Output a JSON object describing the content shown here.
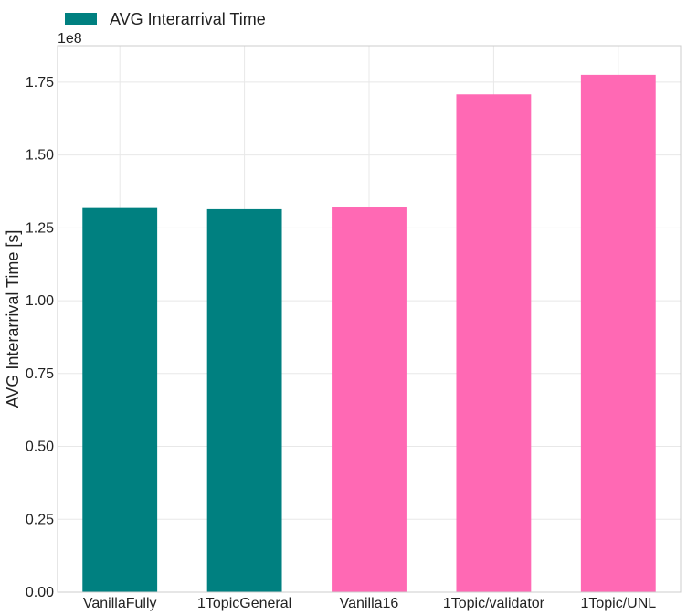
{
  "chart_data": {
    "type": "bar",
    "title": "",
    "xlabel": "",
    "ylabel": "AVG Interarrival Time [s]",
    "y_offset_label": "1e8",
    "ylim": [
      0,
      1.875
    ],
    "yticks": [
      0.0,
      0.25,
      0.5,
      0.75,
      1.0,
      1.25,
      1.5,
      1.75
    ],
    "ytick_labels": [
      "0.00",
      "0.25",
      "0.50",
      "0.75",
      "1.00",
      "1.25",
      "1.50",
      "1.75"
    ],
    "categories": [
      "VanillaFully",
      "1TopicGeneral",
      "Vanilla16",
      "1Topic/validator",
      "1Topic/UNL"
    ],
    "values": [
      1.318,
      1.314,
      1.32,
      1.708,
      1.775
    ],
    "bar_colors": [
      "#008080",
      "#008080",
      "#ff69b4",
      "#ff69b4",
      "#ff69b4"
    ],
    "grid": true,
    "legend": {
      "placement": "top-left",
      "entries": [
        {
          "label": "AVG Interarrival Time",
          "color": "#008080"
        }
      ]
    }
  }
}
